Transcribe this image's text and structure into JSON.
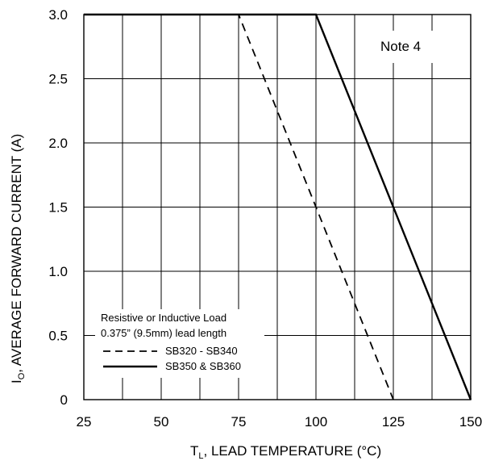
{
  "chart_data": {
    "type": "line",
    "xlabel_main": "T",
    "xlabel_sub": "L",
    "xlabel_rest": ",  LEAD TEMPERATURE (°C)",
    "ylabel_main": "I",
    "ylabel_sub": "O",
    "ylabel_rest": ", AVERAGE FORWARD CURRENT (A)",
    "xlim": [
      25,
      150
    ],
    "ylim": [
      0,
      3.0
    ],
    "x_ticks": [
      25,
      50,
      75,
      100,
      125,
      150
    ],
    "x_tick_labels": [
      "25",
      "50",
      "75",
      "100",
      "125",
      "150"
    ],
    "y_ticks": [
      0,
      0.5,
      1.0,
      1.5,
      2.0,
      2.5,
      3.0
    ],
    "y_tick_labels": [
      "0",
      "0.5",
      "1.0",
      "1.5",
      "2.0",
      "2.5",
      "3.0"
    ],
    "grid": true,
    "annotation": "Note 4",
    "legend": {
      "placement": "bottom-left",
      "line1": "Resistive or Inductive Load",
      "line2": "0.375” (9.5mm) lead length"
    },
    "series": [
      {
        "name": "SB320 - SB340",
        "style": "dashed",
        "x": [
          25,
          75,
          125
        ],
        "y": [
          3.0,
          3.0,
          0
        ]
      },
      {
        "name": "SB350 & SB360",
        "style": "solid",
        "x": [
          25,
          100,
          150
        ],
        "y": [
          3.0,
          3.0,
          0
        ]
      }
    ]
  }
}
